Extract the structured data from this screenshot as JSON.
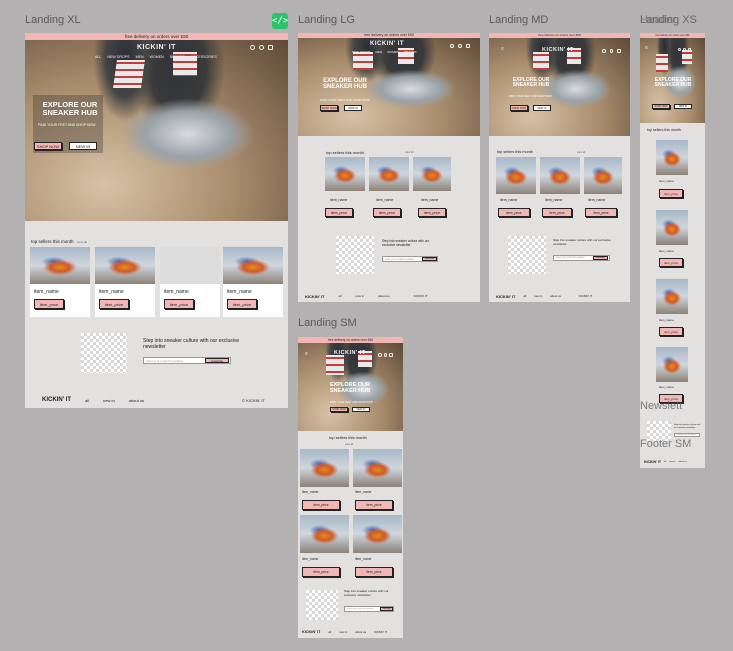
{
  "frames": {
    "xl": {
      "label": "Landing XL"
    },
    "lg": {
      "label": "Landing LG"
    },
    "md": {
      "label": "Landing MD"
    },
    "sm": {
      "label": "Landing SM"
    },
    "xs": {
      "label": "Landing XS",
      "overlap_label": "Header"
    }
  },
  "side_labels": {
    "newsletter": "Newslett",
    "footer": "Footer SM"
  },
  "promo": "free delivery on orders over £50",
  "brand": "KICKIN' IT",
  "nav": [
    "ALL",
    "NEW DROPS",
    "MEN",
    "WOMEN",
    "BRANDS",
    "ACCESSORIES"
  ],
  "hero": {
    "title": "EXPLORE OUR SNEAKER HUB",
    "subtitle": "FIND YOUR FEET AND SHOP NOW",
    "shop_button": "SHOP NOW",
    "new_button": "NEW IN"
  },
  "section_title": "top sellers this month",
  "view_all": "view all",
  "item": {
    "name": "item_name",
    "price": "item_price"
  },
  "newsletter": {
    "text": "Step into sneaker culture with our exclusive newsletter",
    "placeholder": "enter your email for updates",
    "button": "subscribe"
  },
  "footer": {
    "links": [
      "all",
      "new in",
      "about us"
    ],
    "brand_right": "KICKIN' IT"
  },
  "icons": [
    "search-icon",
    "user-icon",
    "bag-icon",
    "code-icon",
    "menu-icon",
    "copyright-icon"
  ],
  "colors": {
    "promo": "#f2b7b5",
    "background": "#e3e1df",
    "canvas": "#b3b1b1",
    "badge": "#2ec26e"
  }
}
